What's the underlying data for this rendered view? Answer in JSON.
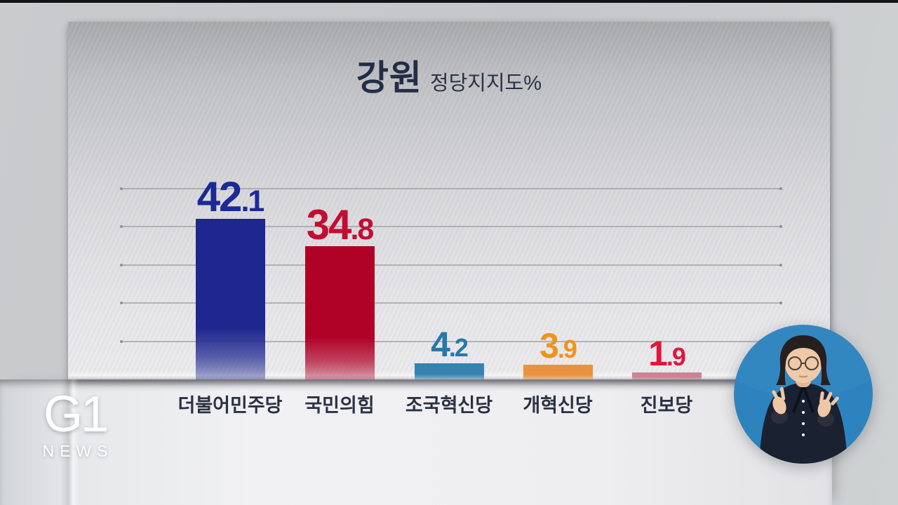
{
  "frame": {
    "letterbox_color": "#121217"
  },
  "station": {
    "logo_main": "G1",
    "logo_sub": "NEWS"
  },
  "chart_data": {
    "type": "bar",
    "title": "강원",
    "subtitle": "정당지지도%",
    "unit": "%",
    "categories": [
      "더불어민주당",
      "국민의힘",
      "조국혁신당",
      "개혁신당",
      "진보당"
    ],
    "values": [
      42.1,
      34.8,
      4.2,
      3.9,
      1.9
    ],
    "bar_colors": [
      "#1e278f",
      "#b00226",
      "#3581b0",
      "#e8923e",
      "#cb8493"
    ],
    "value_colors": [
      "#1c2996",
      "#c40c33",
      "#2778ab",
      "#f0921d",
      "#e0163c"
    ],
    "ylim": [
      0,
      50
    ],
    "gridline_values": [
      10,
      20,
      30,
      40,
      50
    ],
    "grid": true,
    "legend": false,
    "value_labels": true
  },
  "interpreter": {
    "present": true,
    "background_color": "#2d83bd"
  }
}
